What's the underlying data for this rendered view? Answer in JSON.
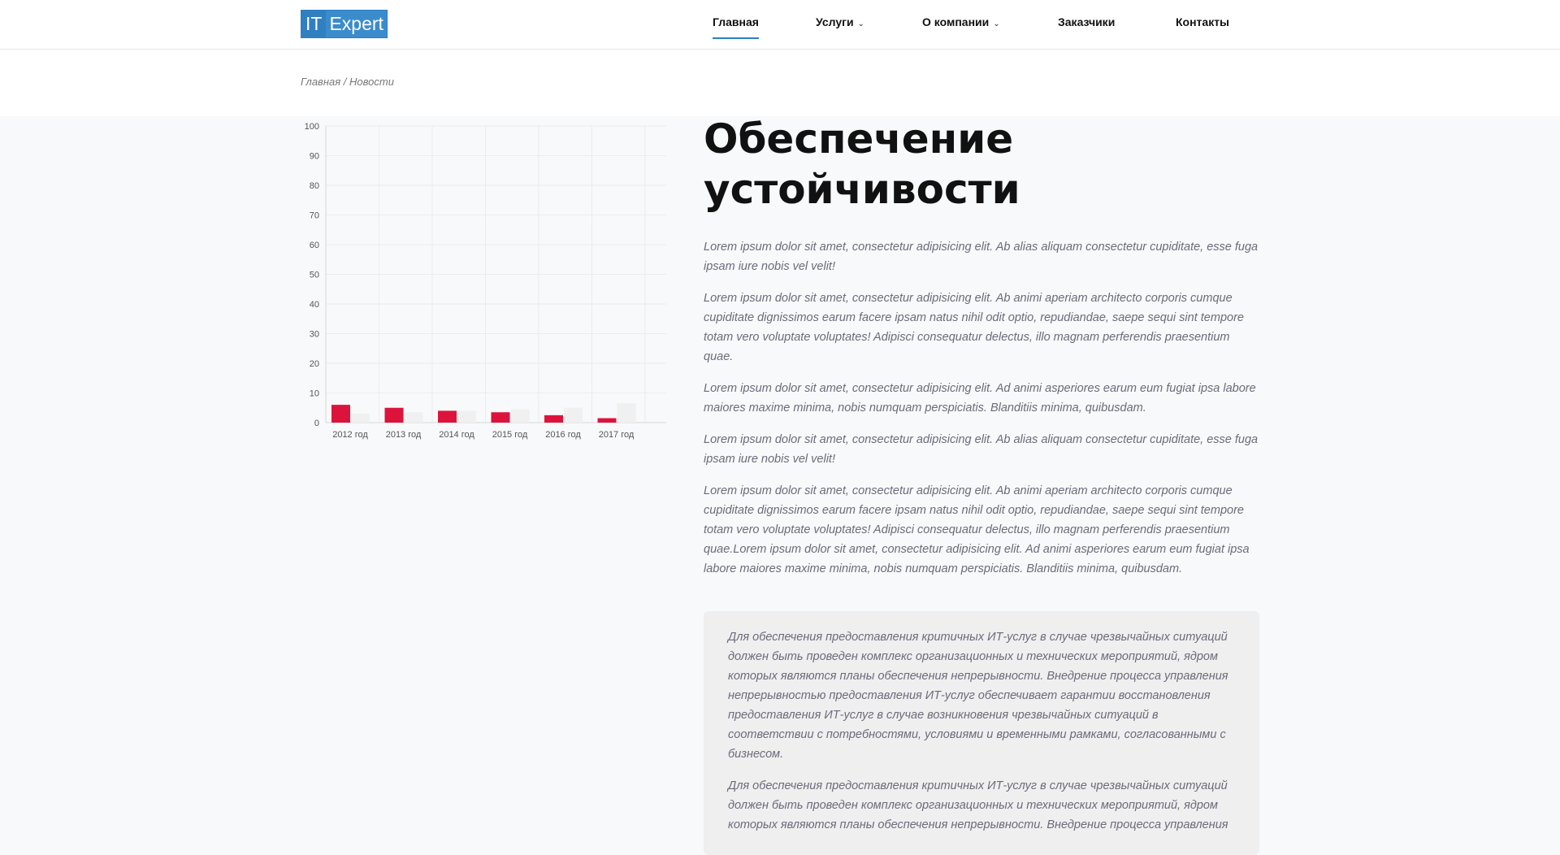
{
  "header": {
    "logo": {
      "part1": "IT",
      "part2": "Expert"
    },
    "nav": [
      {
        "label": "Главная",
        "active": true,
        "dropdown": false
      },
      {
        "label": "Услуги",
        "active": false,
        "dropdown": true
      },
      {
        "label": "О компании",
        "active": false,
        "dropdown": true
      },
      {
        "label": "Заказчики",
        "active": false,
        "dropdown": false
      },
      {
        "label": "Контакты",
        "active": false,
        "dropdown": false
      }
    ],
    "chevron_icon": "chevron-down-icon"
  },
  "breadcrumb": {
    "home": "Главная",
    "separator": " / ",
    "current": "Новости"
  },
  "chart_data": {
    "type": "bar",
    "categories": [
      "2012 год",
      "2013 год",
      "2014 год",
      "2015 год",
      "2016 год",
      "2017 год"
    ],
    "series": [
      {
        "color": "#dc143c",
        "values": [
          6,
          5,
          4,
          3.5,
          2.5,
          1.5
        ]
      },
      {
        "color": "#f0f0f0",
        "values": [
          3,
          3.5,
          4,
          4.5,
          5,
          6.5
        ]
      }
    ],
    "ylim": [
      0,
      100
    ],
    "yticks": [
      0,
      10,
      20,
      30,
      40,
      50,
      60,
      70,
      80,
      90,
      100
    ],
    "grid": true
  },
  "article": {
    "title_line1": "Обеспечение",
    "title_line2": "устойчивости",
    "paragraphs": [
      "Lorem ipsum dolor sit amet, consectetur adipisicing elit. Ab alias aliquam consectetur cupiditate, esse fuga ipsam iure nobis vel velit!",
      "Lorem ipsum dolor sit amet, consectetur adipisicing elit. Ab animi aperiam architecto corporis cumque cupiditate dignissimos earum facere ipsam natus nihil odit optio, repudiandae, saepe sequi sint tempore totam vero voluptate voluptates! Adipisci consequatur delectus, illo magnam perferendis praesentium quae.",
      "Lorem ipsum dolor sit amet, consectetur adipisicing elit. Ad animi asperiores earum eum fugiat ipsa labore maiores maxime minima, nobis numquam perspiciatis. Blanditiis minima, quibusdam.",
      "Lorem ipsum dolor sit amet, consectetur adipisicing elit. Ab alias aliquam consectetur cupiditate, esse fuga ipsam iure nobis vel velit!",
      "Lorem ipsum dolor sit amet, consectetur adipisicing elit. Ab animi aperiam architecto corporis cumque cupiditate dignissimos earum facere ipsam natus nihil odit optio, repudiandae, saepe sequi sint tempore totam vero voluptate voluptates! Adipisci consequatur delectus, illo magnam perferendis praesentium quae.Lorem ipsum dolor sit amet, consectetur adipisicing elit. Ad animi asperiores earum eum fugiat ipsa labore maiores maxime minima, nobis numquam perspiciatis. Blanditiis minima, quibusdam."
    ],
    "quote": [
      "Для обеспечения предоставления критичных ИТ-услуг в случае чрезвычайных ситуаций должен быть проведен комплекс организационных и технических мероприятий, ядром которых являются планы обеспечения непрерывности. Внедрение процесса управления непрерывностью предоставления ИТ-услуг обеспечивает гарантии восстановления предоставления ИТ-услуг в случае возникновения чрезвычайных ситуаций в соответствии с потребностями, условиями и временными рамками, согласованными с бизнесом.",
      "Для обеспечения предоставления критичных ИТ-услуг в случае чрезвычайных ситуаций должен быть проведен комплекс организационных и технических мероприятий, ядром которых являются планы обеспечения непрерывности. Внедрение процесса управления"
    ]
  }
}
